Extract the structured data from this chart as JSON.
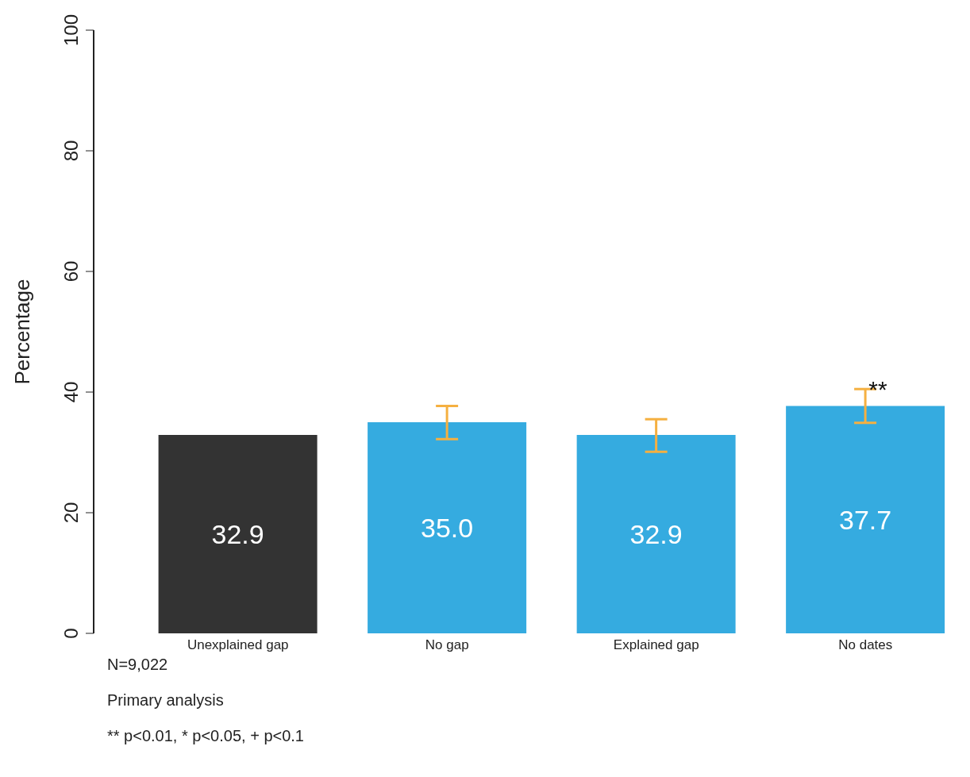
{
  "chart_data": {
    "type": "bar",
    "ylabel": "Percentage",
    "categories": [
      "Unexplained gap",
      "No gap",
      "Explained gap",
      "No dates"
    ],
    "values": [
      32.9,
      35.0,
      32.9,
      37.7
    ],
    "colors": [
      "#333333",
      "#35abe0",
      "#35abe0",
      "#35abe0"
    ],
    "errors": [
      null,
      [
        32.2,
        37.7
      ],
      [
        30.1,
        35.5
      ],
      [
        34.9,
        40.5
      ]
    ],
    "value_labels": [
      "32.9",
      "35.0",
      "32.9",
      "37.7"
    ],
    "ylim": [
      0,
      100
    ],
    "yticks": [
      0,
      20,
      40,
      60,
      80,
      100
    ],
    "grid": false,
    "legend": false,
    "annotations": [
      {
        "text": "**",
        "x": "No dates",
        "y": 40.5
      },
      "N=9,022",
      "Primary analysis",
      "** p<0.01, * p<0.05, + p<0.1"
    ]
  }
}
